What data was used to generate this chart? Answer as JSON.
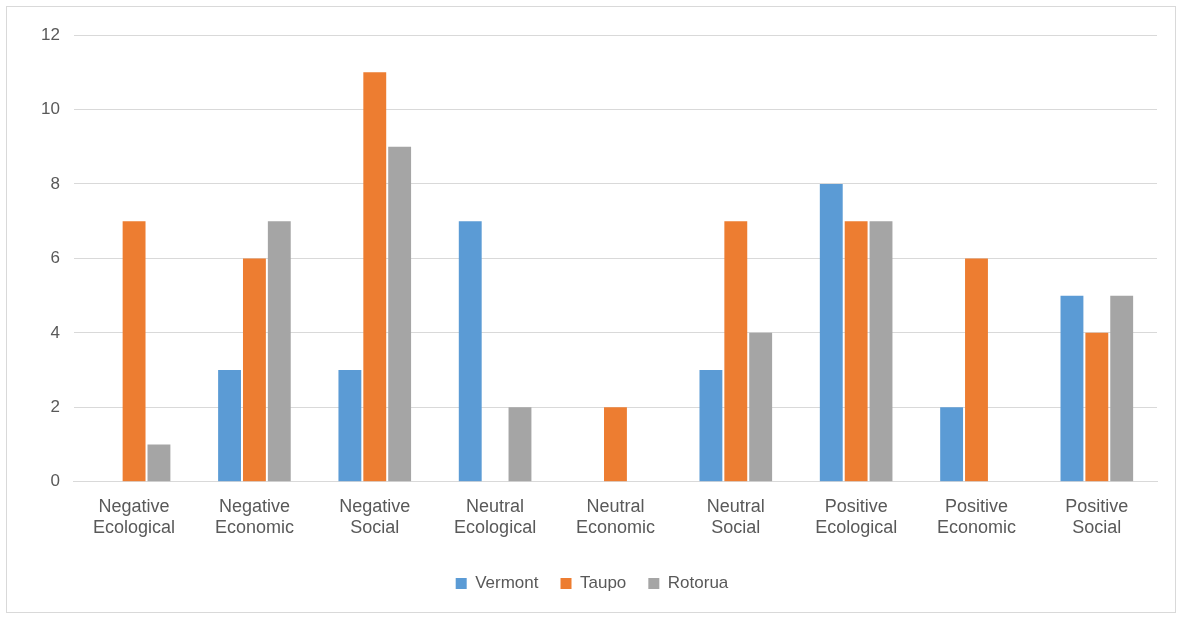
{
  "chart_data": {
    "type": "bar",
    "categories": [
      "Negative Ecological",
      "Negative Economic",
      "Negative Social",
      "Neutral Ecological",
      "Neutral Economic",
      "Neutral Social",
      "Positive Ecological",
      "Positive Economic",
      "Positive Social"
    ],
    "series": [
      {
        "name": "Vermont",
        "color": "#5b9bd5",
        "values": [
          0,
          3,
          3,
          7,
          0,
          3,
          8,
          2,
          5
        ]
      },
      {
        "name": "Taupo",
        "color": "#ed7d31",
        "values": [
          7,
          6,
          11,
          0,
          2,
          7,
          7,
          6,
          4
        ]
      },
      {
        "name": "Rotorua",
        "color": "#a5a5a5",
        "values": [
          1,
          7,
          9,
          2,
          0,
          4,
          7,
          0,
          5
        ]
      }
    ],
    "ylim": [
      0,
      12
    ],
    "yticks": [
      0,
      2,
      4,
      6,
      8,
      10,
      12
    ],
    "grid": "y",
    "legend": "bottom"
  }
}
